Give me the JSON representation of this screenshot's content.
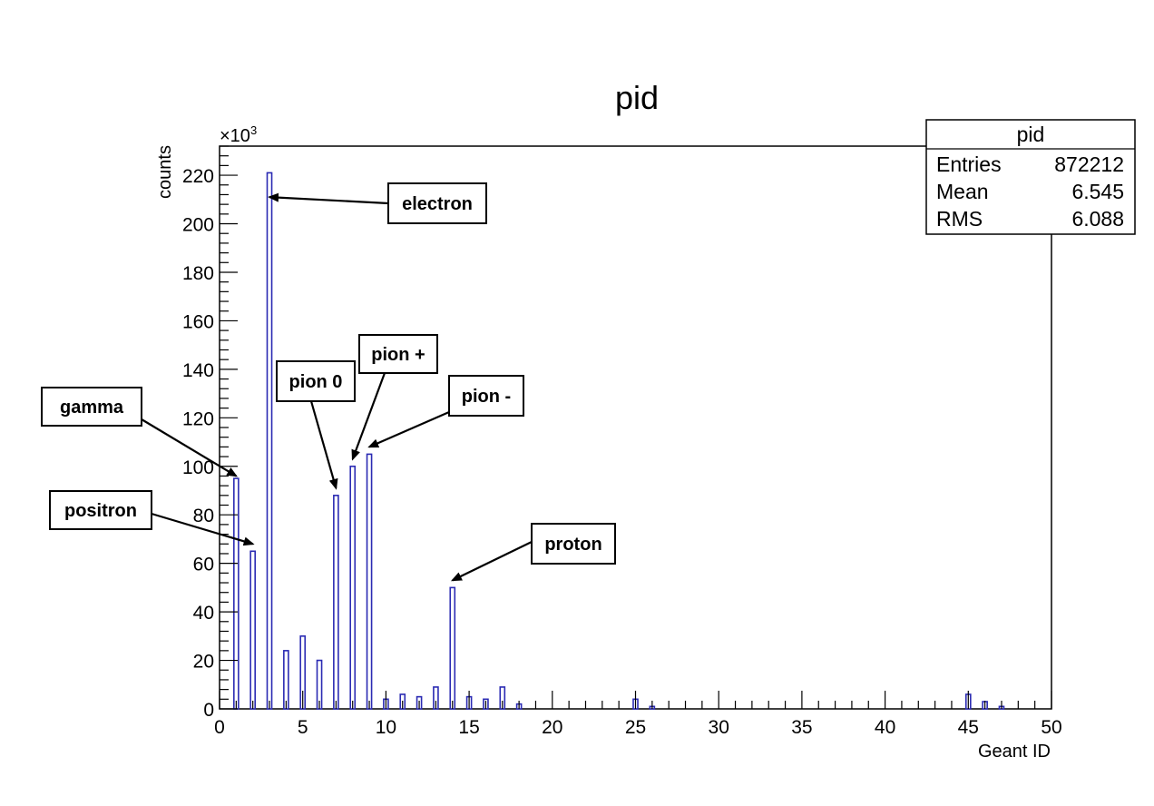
{
  "chart_data": {
    "type": "bar",
    "title": "pid",
    "xlabel": "Geant ID",
    "ylabel": "counts",
    "y_multiplier": "×10",
    "y_multiplier_exp": "3",
    "xlim": [
      0,
      50
    ],
    "ylim": [
      0,
      232
    ],
    "x_ticks": [
      "0",
      "5",
      "10",
      "15",
      "20",
      "25",
      "30",
      "35",
      "40",
      "45",
      "50"
    ],
    "y_ticks": [
      "0",
      "20",
      "40",
      "60",
      "80",
      "100",
      "120",
      "140",
      "160",
      "180",
      "200",
      "220"
    ],
    "grid": false,
    "legend": "none",
    "bar_color": "#2b2bb3",
    "categories": [
      1,
      2,
      3,
      4,
      5,
      6,
      7,
      8,
      9,
      10,
      11,
      12,
      13,
      14,
      15,
      16,
      17,
      18,
      25,
      26,
      45,
      46,
      47
    ],
    "values": [
      95,
      65,
      221,
      24,
      30,
      20,
      88,
      100,
      105,
      4,
      6,
      5,
      9,
      50,
      5,
      4,
      9,
      2,
      4,
      1,
      6,
      3,
      1
    ],
    "stats": {
      "title": "pid",
      "rows": [
        {
          "label": "Entries",
          "value": "872212"
        },
        {
          "label": "Mean",
          "value": "6.545"
        },
        {
          "label": "RMS",
          "value": "6.088"
        }
      ]
    },
    "annotations": [
      {
        "text": "electron",
        "x": 3,
        "y": 211
      },
      {
        "text": "gamma",
        "x": 1,
        "y": 96
      },
      {
        "text": "positron",
        "x": 2,
        "y": 68
      },
      {
        "text": "pion 0",
        "x": 7,
        "y": 91
      },
      {
        "text": "pion +",
        "x": 8,
        "y": 103
      },
      {
        "text": "pion -",
        "x": 9,
        "y": 108
      },
      {
        "text": "proton",
        "x": 14,
        "y": 53
      }
    ]
  }
}
